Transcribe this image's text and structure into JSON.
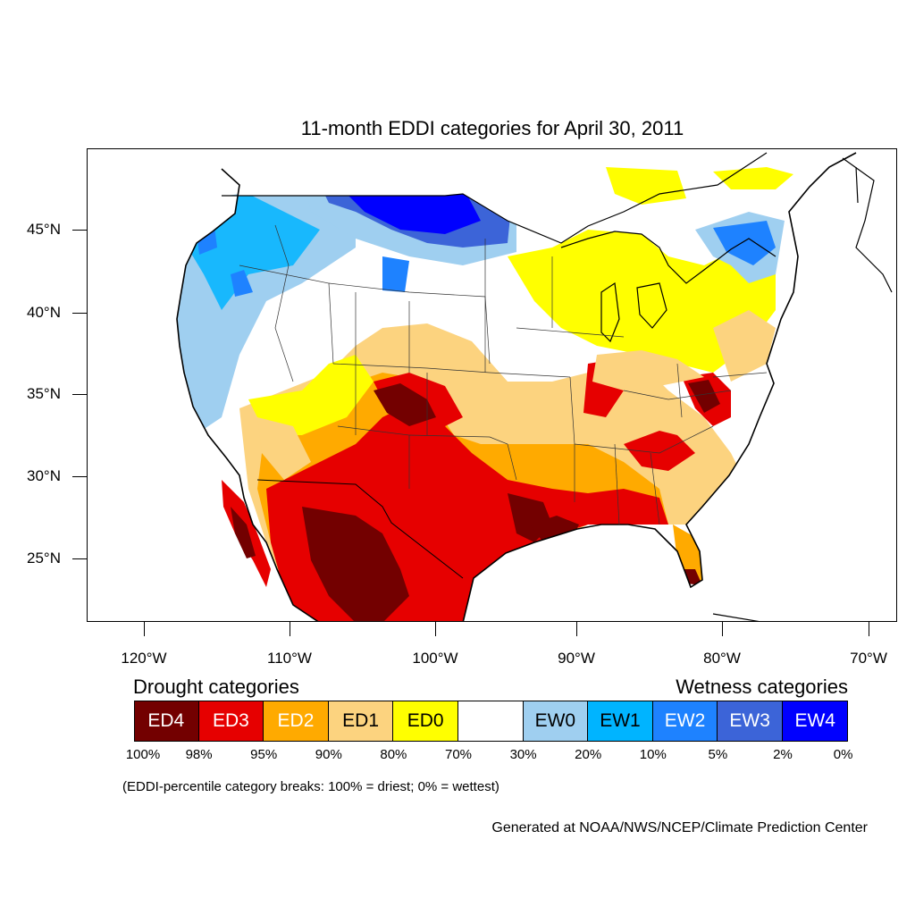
{
  "title": "11-month EDDI categories for April 30, 2011",
  "map": {
    "lat_labels": [
      "45°N",
      "40°N",
      "35°N",
      "30°N",
      "25°N"
    ],
    "lon_labels": [
      "120°W",
      "110°W",
      "100°W",
      "90°W",
      "80°W",
      "70°W"
    ]
  },
  "legend": {
    "drought_heading": "Drought categories",
    "wetness_heading": "Wetness categories",
    "categories": [
      {
        "label": "ED4",
        "color": "#730000",
        "text_color": "#ffffff"
      },
      {
        "label": "ED3",
        "color": "#e60000",
        "text_color": "#ffffff"
      },
      {
        "label": "ED2",
        "color": "#ffaa00",
        "text_color": "#ffffff"
      },
      {
        "label": "ED1",
        "color": "#fcd37f",
        "text_color": "#000000"
      },
      {
        "label": "ED0",
        "color": "#ffff00",
        "text_color": "#000000"
      },
      {
        "label": "",
        "color": "#ffffff",
        "text_color": "#000000"
      },
      {
        "label": "EW0",
        "color": "#9fcff0",
        "text_color": "#000000"
      },
      {
        "label": "EW1",
        "color": "#00b4ff",
        "text_color": "#000000"
      },
      {
        "label": "EW2",
        "color": "#1e82ff",
        "text_color": "#ffffff"
      },
      {
        "label": "EW3",
        "color": "#3c64d8",
        "text_color": "#ffffff"
      },
      {
        "label": "EW4",
        "color": "#0000ff",
        "text_color": "#ffffff"
      }
    ],
    "breaks": [
      "100%",
      "98%",
      "95%",
      "90%",
      "80%",
      "70%",
      "30%",
      "20%",
      "10%",
      "5%",
      "2%",
      "0%"
    ],
    "note": "(EDDI-percentile category breaks: 100% = driest; 0% = wettest)"
  },
  "credit": "Generated at NOAA/NWS/NCEP/Climate Prediction Center"
}
